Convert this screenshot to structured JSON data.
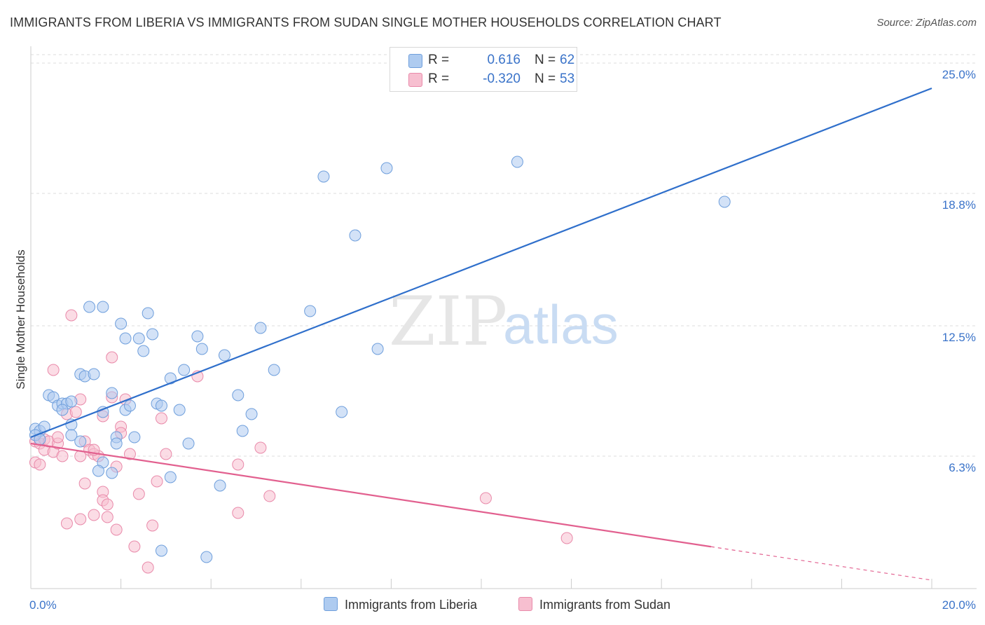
{
  "title": "IMMIGRANTS FROM LIBERIA VS IMMIGRANTS FROM SUDAN SINGLE MOTHER HOUSEHOLDS CORRELATION CHART",
  "source": "Source: ZipAtlas.com",
  "watermark": {
    "zip": "ZIP",
    "atlas": "atlas"
  },
  "legend": {
    "r_label": "R =",
    "n_label": "N =",
    "liberia": {
      "r": "0.616",
      "n": "62"
    },
    "sudan": {
      "r": "-0.320",
      "n": "53"
    }
  },
  "colors": {
    "liberia_fill": "#aecbf0",
    "liberia_stroke": "#6f9fdc",
    "liberia_line": "#2f6fcb",
    "sudan_fill": "#f7bfd0",
    "sudan_stroke": "#e98aaa",
    "sudan_line": "#e2608f",
    "axis_text": "#3a73c9",
    "grid": "#dddddd"
  },
  "chart_data": {
    "type": "scatter",
    "title": "IMMIGRANTS FROM LIBERIA VS IMMIGRANTS FROM SUDAN SINGLE MOTHER HOUSEHOLDS CORRELATION CHART",
    "xlabel": "",
    "ylabel": "Single Mother Households",
    "xlim": [
      0,
      20
    ],
    "ylim": [
      0,
      25.6
    ],
    "x_tick_labels": [
      {
        "value": 0,
        "label": "0.0%"
      },
      {
        "value": 20,
        "label": "20.0%"
      }
    ],
    "y_tick_labels": [
      {
        "value": 6.3,
        "label": "6.3%"
      },
      {
        "value": 12.5,
        "label": "12.5%"
      },
      {
        "value": 18.8,
        "label": "18.8%"
      },
      {
        "value": 25.0,
        "label": "25.0%"
      }
    ],
    "series": [
      {
        "name": "Immigrants from Liberia",
        "trend": {
          "x0": 0,
          "y0": 7.2,
          "x1": 20,
          "y1": 23.8,
          "solid_to": 20
        },
        "points": [
          [
            0.1,
            7.6
          ],
          [
            0.2,
            7.5
          ],
          [
            0.3,
            7.7
          ],
          [
            0.1,
            7.3
          ],
          [
            0.2,
            7.1
          ],
          [
            0.4,
            9.2
          ],
          [
            0.5,
            9.1
          ],
          [
            0.6,
            8.7
          ],
          [
            0.7,
            8.8
          ],
          [
            0.8,
            8.8
          ],
          [
            0.9,
            8.9
          ],
          [
            0.7,
            8.5
          ],
          [
            0.9,
            7.8
          ],
          [
            0.9,
            7.3
          ],
          [
            1.1,
            7.0
          ],
          [
            1.1,
            10.2
          ],
          [
            1.2,
            10.1
          ],
          [
            1.4,
            10.2
          ],
          [
            1.6,
            8.4
          ],
          [
            1.6,
            6.0
          ],
          [
            1.5,
            5.6
          ],
          [
            1.8,
            5.5
          ],
          [
            1.9,
            7.2
          ],
          [
            1.9,
            6.9
          ],
          [
            2.1,
            8.5
          ],
          [
            2.2,
            8.7
          ],
          [
            2.1,
            11.9
          ],
          [
            2.3,
            7.2
          ],
          [
            2.5,
            11.3
          ],
          [
            2.6,
            13.1
          ],
          [
            2.7,
            12.1
          ],
          [
            2.8,
            8.8
          ],
          [
            2.9,
            8.7
          ],
          [
            3.1,
            5.3
          ],
          [
            3.1,
            10.0
          ],
          [
            3.3,
            8.5
          ],
          [
            3.4,
            10.4
          ],
          [
            3.5,
            6.9
          ],
          [
            3.7,
            12.0
          ],
          [
            3.8,
            11.4
          ],
          [
            4.2,
            4.9
          ],
          [
            4.3,
            11.1
          ],
          [
            4.6,
            9.2
          ],
          [
            4.7,
            7.5
          ],
          [
            4.9,
            8.3
          ],
          [
            5.1,
            12.4
          ],
          [
            5.4,
            10.4
          ],
          [
            6.2,
            13.2
          ],
          [
            6.5,
            19.6
          ],
          [
            6.9,
            8.4
          ],
          [
            7.2,
            16.8
          ],
          [
            7.7,
            11.4
          ],
          [
            7.9,
            20.0
          ],
          [
            10.8,
            20.3
          ],
          [
            15.4,
            18.4
          ],
          [
            1.6,
            13.4
          ],
          [
            2.0,
            12.6
          ],
          [
            2.4,
            11.9
          ],
          [
            1.3,
            13.4
          ],
          [
            2.9,
            1.8
          ],
          [
            3.9,
            1.5
          ],
          [
            1.8,
            9.3
          ]
        ]
      },
      {
        "name": "Immigrants from Sudan",
        "trend": {
          "x0": 0,
          "y0": 6.9,
          "x1": 20,
          "y1": 0.4,
          "solid_to": 15.1
        },
        "points": [
          [
            0.1,
            7.0
          ],
          [
            0.2,
            6.9
          ],
          [
            0.3,
            7.1
          ],
          [
            0.1,
            6.0
          ],
          [
            0.2,
            5.9
          ],
          [
            0.3,
            6.6
          ],
          [
            0.4,
            7.0
          ],
          [
            0.5,
            6.5
          ],
          [
            0.5,
            10.4
          ],
          [
            0.6,
            6.9
          ],
          [
            0.7,
            6.3
          ],
          [
            0.8,
            8.3
          ],
          [
            0.8,
            3.1
          ],
          [
            0.9,
            13.0
          ],
          [
            1.0,
            8.4
          ],
          [
            1.1,
            3.3
          ],
          [
            1.1,
            6.3
          ],
          [
            1.1,
            9.0
          ],
          [
            1.2,
            7.0
          ],
          [
            1.2,
            5.0
          ],
          [
            1.3,
            6.6
          ],
          [
            1.4,
            6.4
          ],
          [
            1.4,
            3.5
          ],
          [
            1.5,
            6.3
          ],
          [
            1.6,
            8.2
          ],
          [
            1.6,
            4.6
          ],
          [
            1.6,
            4.2
          ],
          [
            1.7,
            3.4
          ],
          [
            1.7,
            4.0
          ],
          [
            1.8,
            11.0
          ],
          [
            1.8,
            9.1
          ],
          [
            1.9,
            2.8
          ],
          [
            2.0,
            7.7
          ],
          [
            2.0,
            7.4
          ],
          [
            2.1,
            9.0
          ],
          [
            2.2,
            6.4
          ],
          [
            2.3,
            2.0
          ],
          [
            2.4,
            4.5
          ],
          [
            2.6,
            1.0
          ],
          [
            2.7,
            3.0
          ],
          [
            2.8,
            5.1
          ],
          [
            2.9,
            8.1
          ],
          [
            3.0,
            6.4
          ],
          [
            3.7,
            10.1
          ],
          [
            4.6,
            3.6
          ],
          [
            4.6,
            5.9
          ],
          [
            5.1,
            6.7
          ],
          [
            5.3,
            4.4
          ],
          [
            10.1,
            4.3
          ],
          [
            11.9,
            2.4
          ],
          [
            0.6,
            7.2
          ],
          [
            1.4,
            6.6
          ],
          [
            1.9,
            5.8
          ]
        ]
      }
    ]
  },
  "bottom_legend": {
    "liberia": "Immigrants from Liberia",
    "sudan": "Immigrants from Sudan"
  }
}
